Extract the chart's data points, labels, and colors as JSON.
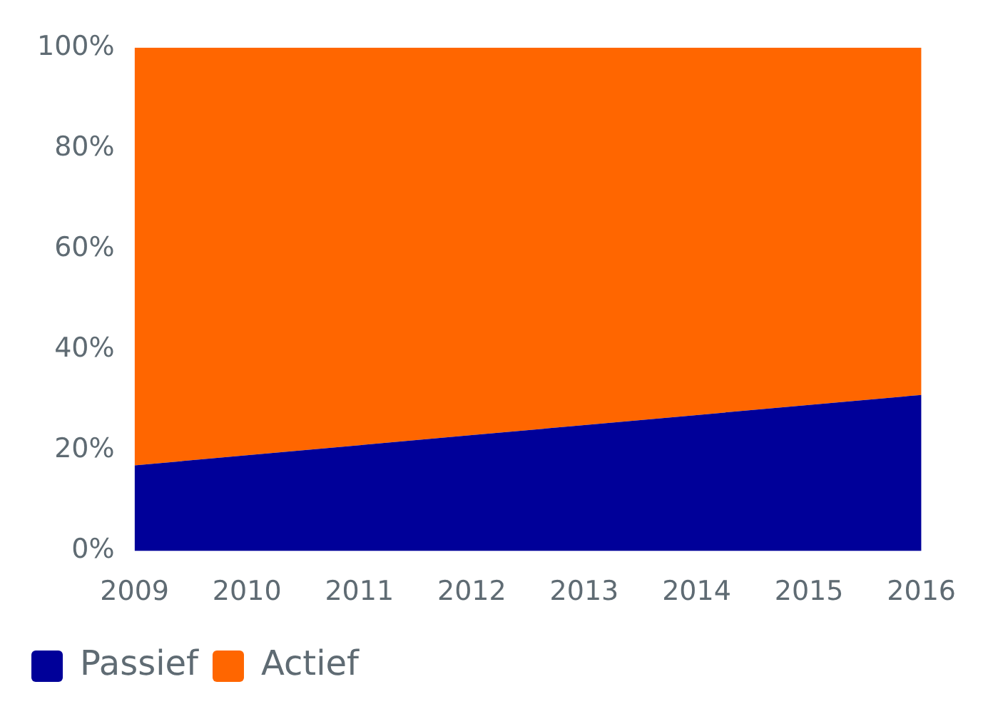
{
  "chart_data": {
    "type": "area",
    "stacked": true,
    "categories": [
      "2009",
      "2010",
      "2011",
      "2012",
      "2013",
      "2014",
      "2015",
      "2016"
    ],
    "series": [
      {
        "name": "Passief",
        "color": "#000099",
        "values": [
          17,
          19,
          21,
          23,
          25,
          27,
          29,
          31
        ]
      },
      {
        "name": "Actief",
        "color": "#ff6600",
        "values": [
          83,
          81,
          79,
          77,
          75,
          73,
          71,
          69
        ]
      }
    ],
    "ylim": [
      0,
      100
    ],
    "yticks": [
      {
        "value": 0,
        "label": "0%"
      },
      {
        "value": 20,
        "label": "20%"
      },
      {
        "value": 40,
        "label": "40%"
      },
      {
        "value": 60,
        "label": "60%"
      },
      {
        "value": 80,
        "label": "80%"
      },
      {
        "value": 100,
        "label": "100%"
      }
    ],
    "grid": false,
    "legend": "bottom left"
  }
}
